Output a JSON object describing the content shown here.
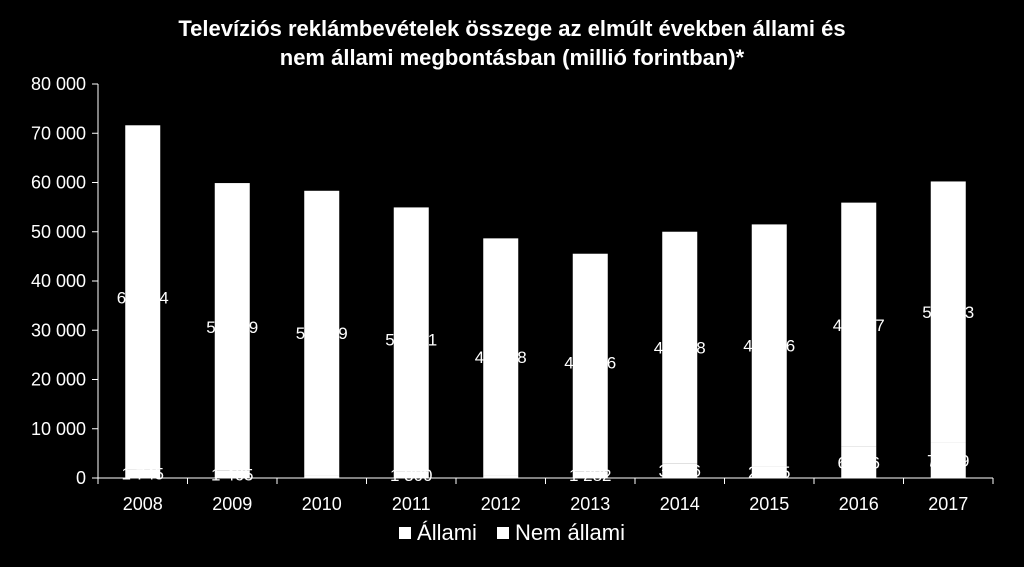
{
  "chart_data": {
    "type": "bar",
    "title_lines": [
      "Televíziós reklámbevételek összege az elmúlt években állami és",
      "nem állami megbontásban (millió forintban)*"
    ],
    "categories": [
      "2008",
      "2009",
      "2010",
      "2011",
      "2012",
      "2013",
      "2014",
      "2015",
      "2016",
      "2017"
    ],
    "series": [
      {
        "name": "Állami",
        "values": [
          1745,
          1465,
          500,
          1300,
          500,
          1282,
          3006,
          2345,
          6316,
          7199
        ],
        "labels": [
          "1 745",
          "1 465",
          "",
          "1 300",
          "",
          "1 282",
          "3 006",
          "2 345",
          "6 316",
          "7 199"
        ]
      },
      {
        "name": "Nem állami",
        "values": [
          69874,
          58419,
          57819,
          53641,
          48158,
          44256,
          46998,
          49146,
          49597,
          53013
        ],
        "labels": [
          "69 874",
          "58 419",
          "57 819",
          "53 641",
          "48 158",
          "44 256",
          "46 998",
          "49 146",
          "49 597",
          "53 013"
        ]
      }
    ],
    "yticks": [
      "0",
      "10 000",
      "20 000",
      "30 000",
      "40 000",
      "50 000",
      "60 000",
      "70 000",
      "80 000"
    ],
    "ylim": [
      0,
      80000
    ],
    "stacked": true,
    "colors": {
      "bars": "#ffffff",
      "background": "#000000",
      "axis": "#ffffff",
      "labels": "#ffffff"
    },
    "legend_position": "bottom",
    "grid": false
  }
}
